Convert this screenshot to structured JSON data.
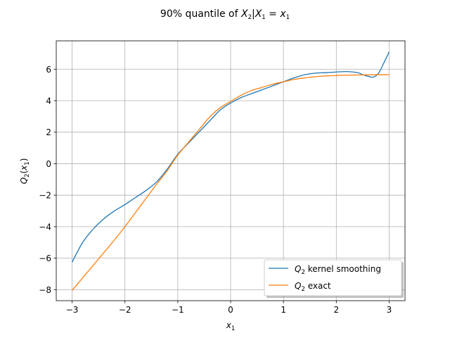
{
  "chart_data": {
    "type": "line",
    "title": {
      "prefix": "90% quantile of ",
      "var1": "X",
      "sub1": "2",
      "bar": "|",
      "var2": "X",
      "sub2": "1",
      "eq": " = ",
      "var3": "x",
      "sub3": "1"
    },
    "xlabel": {
      "var": "x",
      "sub": "1"
    },
    "ylabel": {
      "var": "Q",
      "sub": "2",
      "open": "(",
      "arg": "x",
      "argsub": "1",
      "close": ")"
    },
    "xlim": [
      -3.3,
      3.3
    ],
    "ylim": [
      -8.7,
      7.8
    ],
    "xticks": [
      -3,
      -2,
      -1,
      0,
      1,
      2,
      3
    ],
    "yticks": [
      -8,
      -6,
      -4,
      -2,
      0,
      2,
      4,
      6
    ],
    "xtick_labels": [
      "−3",
      "−2",
      "−1",
      "0",
      "1",
      "2",
      "3"
    ],
    "ytick_labels": [
      "−8",
      "−6",
      "−4",
      "−2",
      "0",
      "2",
      "4",
      "6"
    ],
    "grid": true,
    "legend_position": "lower-right",
    "series": [
      {
        "name": {
          "var": "Q",
          "sub": "2",
          "rest": " kernel smoothing"
        },
        "color": "#1f77b4",
        "x": [
          -3.0,
          -2.8,
          -2.6,
          -2.4,
          -2.2,
          -2.0,
          -1.8,
          -1.6,
          -1.4,
          -1.2,
          -1.0,
          -0.8,
          -0.6,
          -0.4,
          -0.2,
          0.0,
          0.2,
          0.4,
          0.6,
          0.8,
          1.0,
          1.2,
          1.4,
          1.6,
          1.8,
          2.0,
          2.2,
          2.4,
          2.5,
          2.6,
          2.7,
          2.8,
          2.9,
          3.0
        ],
        "y": [
          -6.25,
          -5.0,
          -4.15,
          -3.5,
          -3.0,
          -2.6,
          -2.15,
          -1.7,
          -1.15,
          -0.35,
          0.6,
          1.3,
          2.0,
          2.7,
          3.4,
          3.85,
          4.2,
          4.45,
          4.7,
          4.95,
          5.2,
          5.45,
          5.65,
          5.75,
          5.78,
          5.82,
          5.85,
          5.78,
          5.65,
          5.55,
          5.5,
          5.75,
          6.4,
          7.1
        ]
      },
      {
        "name": {
          "var": "Q",
          "sub": "2",
          "rest": " exact"
        },
        "color": "#ff7f0e",
        "x": [
          -3.0,
          -2.8,
          -2.6,
          -2.4,
          -2.2,
          -2.0,
          -1.8,
          -1.6,
          -1.4,
          -1.2,
          -1.0,
          -0.8,
          -0.6,
          -0.4,
          -0.2,
          0.0,
          0.2,
          0.4,
          0.6,
          0.8,
          1.0,
          1.2,
          1.4,
          1.6,
          1.8,
          2.0,
          2.2,
          2.4,
          2.6,
          2.8,
          3.0
        ],
        "y": [
          -8.05,
          -7.25,
          -6.45,
          -5.65,
          -4.85,
          -4.0,
          -3.1,
          -2.2,
          -1.3,
          -0.45,
          0.55,
          1.35,
          2.15,
          2.95,
          3.55,
          3.95,
          4.35,
          4.65,
          4.85,
          5.05,
          5.2,
          5.35,
          5.45,
          5.52,
          5.57,
          5.6,
          5.62,
          5.63,
          5.64,
          5.65,
          5.65
        ]
      }
    ]
  }
}
